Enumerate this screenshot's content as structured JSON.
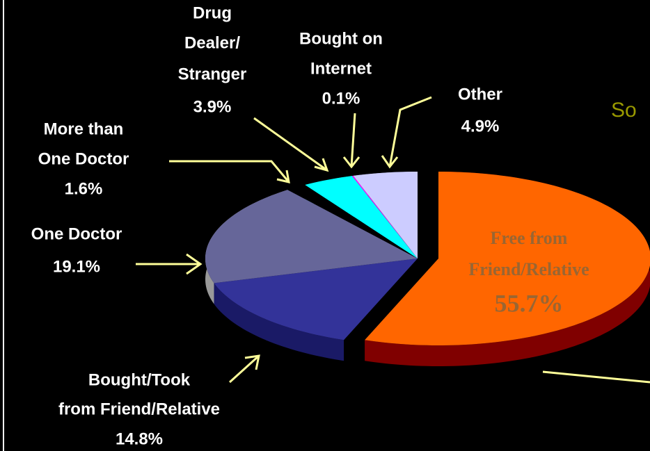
{
  "chart_data": {
    "type": "pie",
    "annotation": "So",
    "labels": [
      [
        "Free from",
        "Friend/Relative"
      ],
      [
        "Bought/Took",
        "from Friend/Relative"
      ],
      [
        "One Doctor"
      ],
      [
        "More than",
        "One Doctor"
      ],
      [
        "Drug",
        "Dealer/",
        "Stranger"
      ],
      [
        "Bought on",
        "Internet"
      ],
      [
        "Other"
      ]
    ],
    "values": [
      55.7,
      14.8,
      19.1,
      1.6,
      3.9,
      0.1,
      4.9
    ],
    "value_labels": [
      "55.7%",
      "14.8%",
      "19.1%",
      "1.6%",
      "3.9%",
      "0.1%",
      "4.9%"
    ],
    "colors": [
      "#ff6600",
      "#333399",
      "#666699",
      "#000000",
      "#00ffff",
      "#ff00ff",
      "#ccccff"
    ],
    "side_colors": [
      "#800000",
      "#1a1a66",
      "#999999",
      "#000000",
      "#008080",
      "#800080",
      "#8080a0"
    ],
    "explode": [
      true,
      false,
      false,
      false,
      false,
      false,
      false
    ]
  }
}
